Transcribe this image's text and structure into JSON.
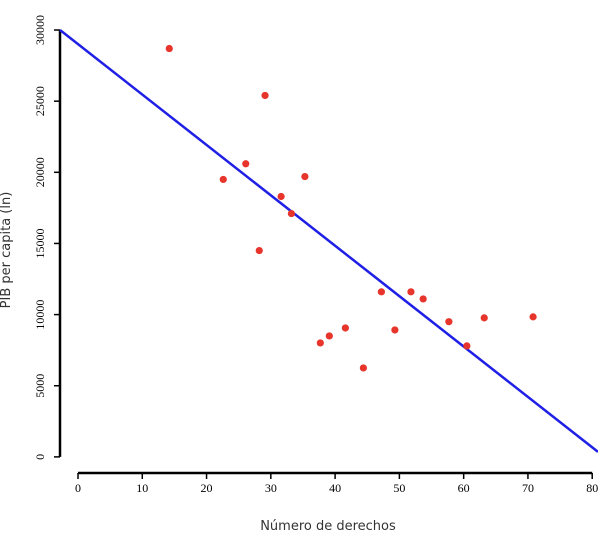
{
  "chart_data": {
    "type": "scatter",
    "x_label": "Número de derechos",
    "y_label": "PIB per capita (ln)",
    "xlim": [
      -2.8,
      80.9
    ],
    "ylim": [
      -500,
      30100
    ],
    "xticks": [
      0,
      10,
      20,
      30,
      40,
      50,
      60,
      70,
      80
    ],
    "yticks": [
      0,
      5000,
      10000,
      15000,
      20000,
      25000,
      30000
    ],
    "series": [
      {
        "color": "#e8352c",
        "x": [
          14.2,
          29.1,
          26.1,
          22.6,
          35.3,
          31.6,
          33.2,
          28.2,
          47.2,
          51.8,
          53.7,
          57.7,
          63.2,
          70.8,
          41.6,
          49.3,
          39.1,
          37.7,
          60.5,
          44.4
        ],
        "values": [
          28700,
          25400,
          20600,
          19500,
          19700,
          18300,
          17100,
          14500,
          11600,
          11600,
          11100,
          9500,
          9770,
          9840,
          9060,
          8920,
          8500,
          8010,
          7800,
          6250
        ]
      }
    ],
    "fit_line": {
      "color": "#1f1fe6",
      "x": [
        -2.8,
        80.9
      ],
      "values": [
        30000,
        351
      ]
    }
  }
}
